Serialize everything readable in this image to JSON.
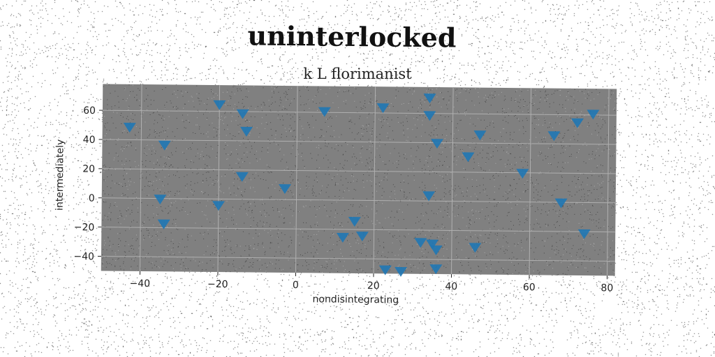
{
  "title": "uninterlocked",
  "subtitle": "k L florimanist",
  "chart_data": {
    "type": "scatter",
    "title": "uninterlocked",
    "subtitle": "k L florimanist",
    "xlabel": "nondisintegrating",
    "ylabel": "intermediately",
    "xlim": [
      -50,
      82
    ],
    "ylim": [
      -50,
      78
    ],
    "xticks": [
      -40,
      -20,
      0,
      20,
      40,
      60,
      80
    ],
    "yticks": [
      -40,
      -20,
      0,
      20,
      40,
      60
    ],
    "grid": true,
    "marker": "triangle-down",
    "colors": {
      "marker": "#1f77b4",
      "plot_bg": "#808080",
      "grid": "#b0b0b0"
    },
    "x": [
      -43,
      -35,
      -34,
      -34,
      -20,
      -20,
      -14,
      -14,
      -13,
      -3,
      7,
      12,
      15,
      17,
      22,
      23,
      27,
      32,
      34,
      34,
      34,
      35,
      36,
      36,
      36,
      44,
      46,
      47,
      58,
      66,
      68,
      72,
      74,
      76
    ],
    "y": [
      49,
      0,
      37,
      -17,
      65,
      -4,
      59,
      16,
      47,
      8,
      61,
      -25,
      -14,
      -24,
      64,
      -47,
      -48,
      -28,
      71,
      59,
      4,
      -29,
      40,
      -33,
      -46,
      31,
      -31,
      46,
      20,
      46,
      0,
      55,
      -21,
      61
    ]
  }
}
